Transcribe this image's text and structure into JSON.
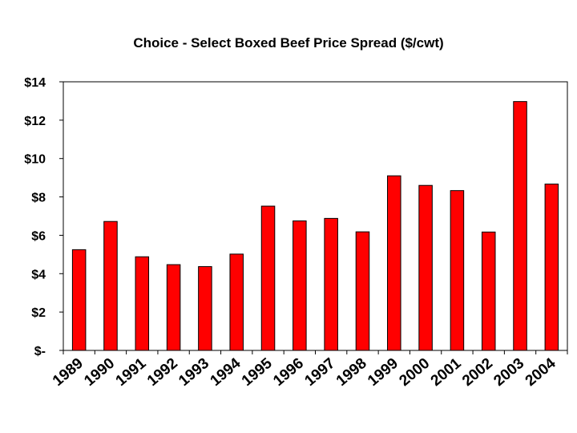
{
  "chart_data": {
    "type": "bar",
    "title": "Choice - Select Boxed Beef Price Spread ($/cwt)",
    "xlabel": "",
    "ylabel": "",
    "categories": [
      "1989",
      "1990",
      "1991",
      "1992",
      "1993",
      "1994",
      "1995",
      "1996",
      "1997",
      "1998",
      "1999",
      "2000",
      "2001",
      "2002",
      "2003",
      "2004"
    ],
    "values": [
      5.25,
      6.72,
      4.88,
      4.47,
      4.37,
      5.02,
      7.52,
      6.75,
      6.88,
      6.18,
      9.1,
      8.6,
      8.33,
      6.17,
      12.97,
      8.67
    ],
    "ylim": [
      0,
      14
    ],
    "yticks": [
      0,
      2,
      4,
      6,
      8,
      10,
      12,
      14
    ],
    "ytick_labels": [
      "$-",
      "$2",
      "$4",
      "$6",
      "$8",
      "$10",
      "$12",
      "$14"
    ],
    "bar_color": "#ff0000",
    "bar_edge_color": "#000000",
    "grid": false,
    "legend": "none"
  }
}
